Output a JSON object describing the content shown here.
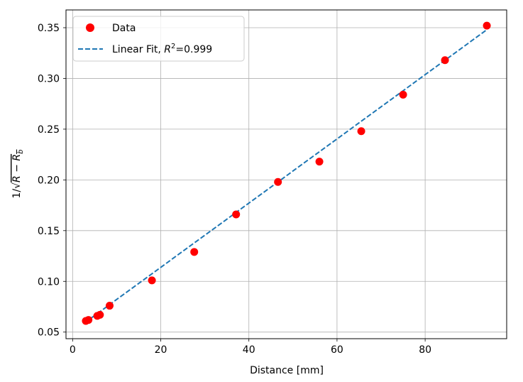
{
  "chart_data": {
    "type": "scatter",
    "title": "",
    "xlabel": "Distance [mm]",
    "ylabel": "1/√R − R_b",
    "xlim": [
      -1.5,
      98.5
    ],
    "ylim": [
      0.0435,
      0.3675
    ],
    "xticks": [
      0,
      20,
      40,
      60,
      80
    ],
    "yticks": [
      0.05,
      0.1,
      0.15,
      0.2,
      0.25,
      0.3,
      0.35
    ],
    "ytick_labels": [
      "0.05",
      "0.10",
      "0.15",
      "0.20",
      "0.25",
      "0.30",
      "0.35"
    ],
    "grid": true,
    "legend_position": "top-left",
    "series": [
      {
        "name": "Data",
        "kind": "scatter",
        "color": "#ff0000",
        "x": [
          3.0,
          3.6,
          5.6,
          6.2,
          8.4,
          18.0,
          27.6,
          37.1,
          46.6,
          56.0,
          65.5,
          75.0,
          84.5,
          94.0
        ],
        "y": [
          0.061,
          0.062,
          0.066,
          0.067,
          0.076,
          0.101,
          0.129,
          0.166,
          0.198,
          0.218,
          0.248,
          0.284,
          0.318,
          0.352
        ]
      },
      {
        "name": "Linear Fit, R²=0.999",
        "kind": "dashed-line",
        "color": "#1f77b4",
        "x": [
          3.0,
          94.0
        ],
        "y": [
          0.06,
          0.348
        ]
      }
    ],
    "legend": {
      "data_label": "Data",
      "fit_prefix": "Linear Fit, ",
      "fit_r": "R",
      "fit_exp": "2",
      "fit_suffix": "=0.999"
    }
  }
}
